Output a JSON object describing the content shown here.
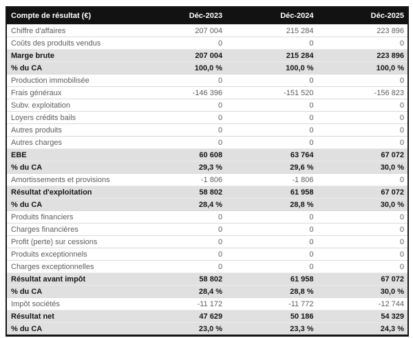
{
  "colors": {
    "header_bg": "#121212",
    "header_text": "#ffffff",
    "total_row_bg": "#e0e0e0",
    "normal_row_bg": "#ffffff",
    "normal_text": "#5c5c5c",
    "strong_text": "#141414",
    "outer_border": "#141414",
    "row_divider": "#d9d9d9"
  },
  "table": {
    "header": {
      "title": "Compte de résultat (€)",
      "periods": [
        "Déc-2023",
        "Déc-2024",
        "Déc-2025"
      ]
    },
    "rows": [
      {
        "label": "Chiffre d'affaires",
        "values": [
          "207 004",
          "215 284",
          "223 896"
        ],
        "style": "normal"
      },
      {
        "label": "Coûts des produits vendus",
        "values": [
          "0",
          "0",
          "0"
        ],
        "style": "normal"
      },
      {
        "label": "Marge brute",
        "values": [
          "207 004",
          "215 284",
          "223 896"
        ],
        "style": "total"
      },
      {
        "label": "% du CA",
        "values": [
          "100,0 %",
          "100,0 %",
          "100,0 %"
        ],
        "style": "total"
      },
      {
        "label": "Production immobilisée",
        "values": [
          "0",
          "0",
          "0"
        ],
        "style": "normal"
      },
      {
        "label": "Frais généraux",
        "values": [
          "-146 396",
          "-151 520",
          "-156 823"
        ],
        "style": "normal"
      },
      {
        "label": "Subv. exploitation",
        "values": [
          "0",
          "0",
          "0"
        ],
        "style": "normal"
      },
      {
        "label": "Loyers crédits bails",
        "values": [
          "0",
          "0",
          "0"
        ],
        "style": "normal"
      },
      {
        "label": "Autres produits",
        "values": [
          "0",
          "0",
          "0"
        ],
        "style": "normal"
      },
      {
        "label": "Autres charges",
        "values": [
          "0",
          "0",
          "0"
        ],
        "style": "normal"
      },
      {
        "label": "EBE",
        "values": [
          "60 608",
          "63 764",
          "67 072"
        ],
        "style": "total"
      },
      {
        "label": "% du CA",
        "values": [
          "29,3 %",
          "29,6 %",
          "30,0 %"
        ],
        "style": "total"
      },
      {
        "label": "Amortissements et provisions",
        "values": [
          "-1 806",
          "-1 806",
          "0"
        ],
        "style": "normal"
      },
      {
        "label": "Résultat d'exploitation",
        "values": [
          "58 802",
          "61 958",
          "67 072"
        ],
        "style": "total"
      },
      {
        "label": "% du CA",
        "values": [
          "28,4 %",
          "28,8 %",
          "30,0 %"
        ],
        "style": "total"
      },
      {
        "label": "Produits financiers",
        "values": [
          "0",
          "0",
          "0"
        ],
        "style": "normal"
      },
      {
        "label": "Charges financières",
        "values": [
          "0",
          "0",
          "0"
        ],
        "style": "normal"
      },
      {
        "label": "Profit (perte) sur cessions",
        "values": [
          "0",
          "0",
          "0"
        ],
        "style": "normal"
      },
      {
        "label": "Produits exceptionnels",
        "values": [
          "0",
          "0",
          "0"
        ],
        "style": "normal"
      },
      {
        "label": "Charges exceptionnelles",
        "values": [
          "0",
          "0",
          "0"
        ],
        "style": "normal"
      },
      {
        "label": "Résultat avant impôt",
        "values": [
          "58 802",
          "61 958",
          "67 072"
        ],
        "style": "total"
      },
      {
        "label": "% du CA",
        "values": [
          "28,4 %",
          "28,8 %",
          "30,0 %"
        ],
        "style": "total"
      },
      {
        "label": "Impôt sociétés",
        "values": [
          "-11 172",
          "-11 772",
          "-12 744"
        ],
        "style": "normal"
      },
      {
        "label": "Résultat net",
        "values": [
          "47 629",
          "50 186",
          "54 329"
        ],
        "style": "total"
      },
      {
        "label": "% du CA",
        "values": [
          "23,0 %",
          "23,3 %",
          "24,3 %"
        ],
        "style": "total"
      }
    ]
  }
}
